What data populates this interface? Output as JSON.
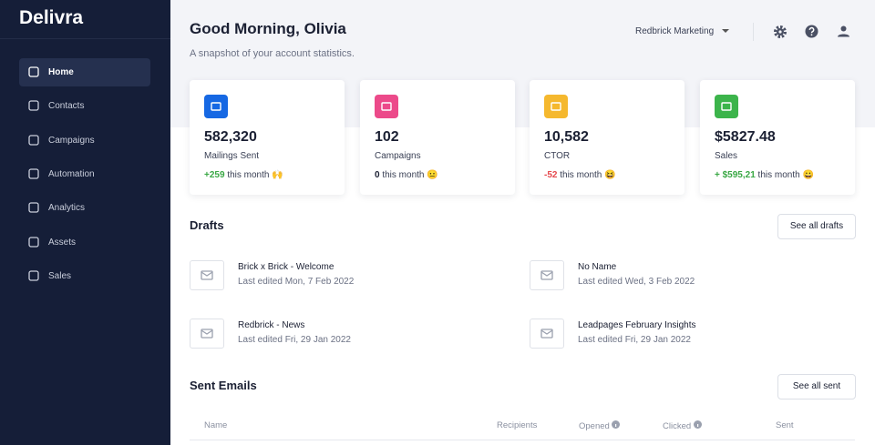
{
  "sidebar": {
    "logo": "Delivra",
    "nav": [
      "Home",
      "Contacts",
      "Campaigns",
      "Automation",
      "Analytics",
      "Assets",
      "Sales"
    ],
    "active": 0
  },
  "header": {
    "greeting": "Good Morning, Olivia",
    "subtitle": "A snapshot of your account statistics.",
    "account": "Redbrick Marketing"
  },
  "stats": [
    {
      "value": "582,320",
      "label": "Mailings Sent",
      "change": "+259",
      "period": "this month 🙌",
      "icon_color": "#1668e3",
      "change_color": "#3aa845"
    },
    {
      "value": "102",
      "label": "Campaigns",
      "change": "0",
      "period": "this month 😐",
      "icon_color": "#ec4a8a",
      "change_color": "#1b2033"
    },
    {
      "value": "10,582",
      "label": "CTOR",
      "change": "-52",
      "period": "this month 😆",
      "icon_color": "#f5b82e",
      "change_color": "#e5484d"
    },
    {
      "value": "$5827.48",
      "label": "Sales",
      "change": "+ $595,21",
      "period": "this month 😀",
      "icon_color": "#3cb44b",
      "change_color": "#3aa845"
    }
  ],
  "drafts": {
    "title": "Drafts",
    "button": "See all drafts",
    "items": [
      {
        "name": "Brick x Brick - Welcome",
        "edited": "Last edited Mon, 7 Feb 2022"
      },
      {
        "name": "No Name",
        "edited": "Last edited Wed, 3 Feb 2022"
      },
      {
        "name": "Redbrick - News",
        "edited": "Last edited Fri, 29 Jan 2022"
      },
      {
        "name": "Leadpages February Insights",
        "edited": "Last edited Fri, 29 Jan 2022"
      }
    ]
  },
  "sent": {
    "title": "Sent Emails",
    "button": "See all sent",
    "columns": [
      "Name",
      "Recipients",
      "Opened",
      "Clicked",
      "Sent"
    ]
  }
}
